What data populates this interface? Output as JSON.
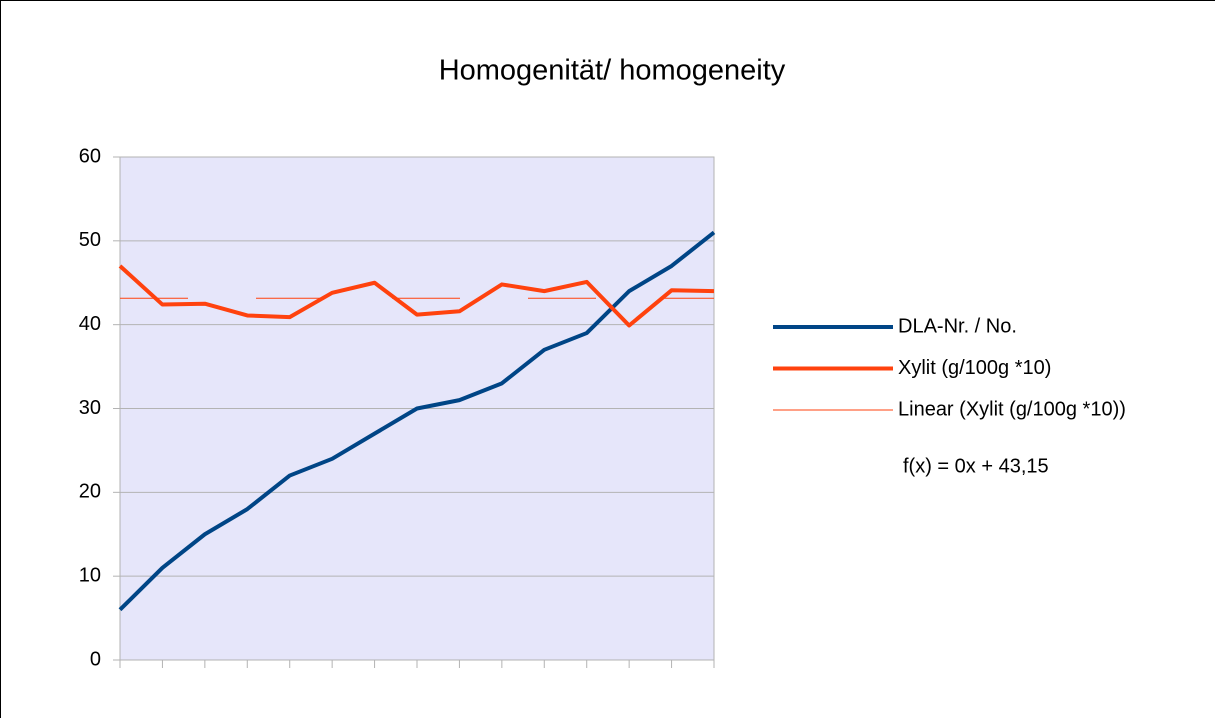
{
  "chart_data": {
    "type": "line",
    "title": "Homogenität/ homogeneity",
    "categories": [
      null,
      null,
      null,
      null,
      null,
      null,
      null,
      null,
      null,
      null,
      null,
      null,
      null,
      null,
      null
    ],
    "series": [
      {
        "name": "DLA-Nr. / No.",
        "color": "#004586",
        "width": 4,
        "values": [
          6,
          11,
          15,
          18,
          22,
          24,
          27,
          30,
          31,
          33,
          37,
          39,
          44,
          47,
          51
        ]
      },
      {
        "name": "Xylit (g/100g *10)",
        "color": "#ff420e",
        "width": 4,
        "values": [
          47,
          42.4,
          42.5,
          41.1,
          40.9,
          43.8,
          45,
          41.2,
          41.6,
          44.8,
          44,
          45.1,
          39.9,
          44.1,
          44
        ]
      },
      {
        "name": "Linear (Xylit (g/100g *10))",
        "color": "#ff420e",
        "width": 1,
        "dashed": true,
        "values": [
          43.15,
          43.15,
          43.15,
          43.15,
          43.15,
          43.15,
          43.15,
          43.15,
          43.15,
          43.15,
          43.15,
          43.15,
          43.15,
          43.15,
          43.15
        ]
      }
    ],
    "annotation": "f(x) = 0x + 43,15",
    "ylim": [
      0,
      60
    ],
    "yticks": [
      0,
      10,
      20,
      30,
      40,
      50,
      60
    ],
    "grid": true,
    "legend": "right"
  }
}
